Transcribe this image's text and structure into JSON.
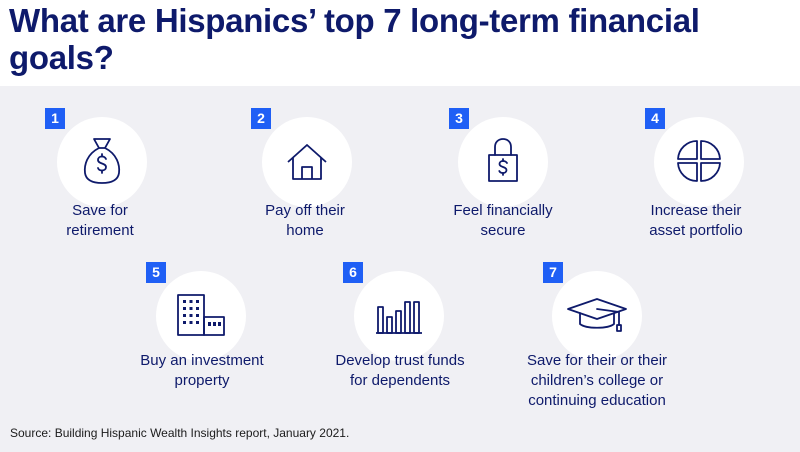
{
  "title": "What are Hispanics’ top 7 long-term financial goals?",
  "goals": [
    {
      "number": "1",
      "line1": "Save for",
      "line2": "retirement",
      "icon": "money-bag-icon"
    },
    {
      "number": "2",
      "line1": "Pay off their",
      "line2": "home",
      "icon": "house-icon"
    },
    {
      "number": "3",
      "line1": "Feel financially",
      "line2": "secure",
      "icon": "padlock-dollar-icon"
    },
    {
      "number": "4",
      "line1": "Increase their",
      "line2": "asset portfolio",
      "icon": "pie-chart-icon"
    },
    {
      "number": "5",
      "line1": "Buy an investment",
      "line2": "property",
      "icon": "buildings-icon"
    },
    {
      "number": "6",
      "line1": "Develop trust funds",
      "line2": "for dependents",
      "icon": "bar-chart-icon"
    },
    {
      "number": "7",
      "line1": "Save for their or their",
      "line2": "children’s college or",
      "line3": "continuing education",
      "icon": "graduation-cap-icon"
    }
  ],
  "source": "Source: Building Hispanic Wealth Insights report, January 2021.",
  "colors": {
    "navy": "#0e1a6b",
    "badge": "#1f5ff5",
    "background": "#f0f0f4"
  }
}
